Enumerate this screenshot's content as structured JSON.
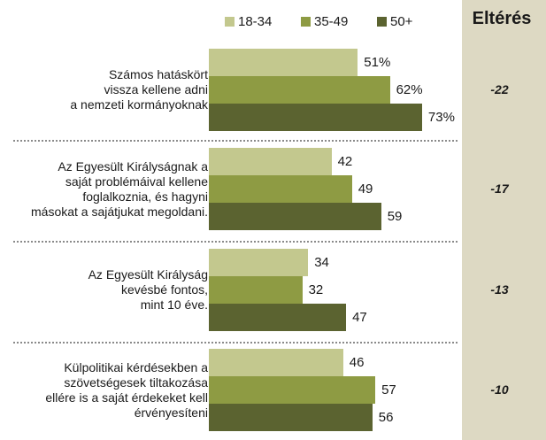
{
  "chart_data": {
    "type": "bar",
    "orientation": "horizontal",
    "diff_header": "Eltérés",
    "series": [
      {
        "name": "18-34",
        "color": "#c3c88e"
      },
      {
        "name": "35-49",
        "color": "#8e9b43"
      },
      {
        "name": "50+",
        "color": "#5b6330"
      }
    ],
    "categories": [
      {
        "lines": [
          "Számos hatáskört",
          "vissza kellene adni",
          "a nemzeti kormányoknak"
        ],
        "values": [
          51,
          62,
          73
        ],
        "value_labels": [
          "51%",
          "62%",
          "73%"
        ],
        "diff": "-22"
      },
      {
        "lines": [
          "Az Egyesült Királyságnak a",
          "saját problémáival kellene",
          "foglalkoznia, és hagyni",
          "másokat a sajátjukat megoldani."
        ],
        "values": [
          42,
          49,
          59
        ],
        "value_labels": [
          "42",
          "49",
          "59"
        ],
        "diff": "-17"
      },
      {
        "lines": [
          "Az Egyesült Királyság",
          "kevésbé fontos,",
          "mint 10 éve."
        ],
        "values": [
          34,
          32,
          47
        ],
        "value_labels": [
          "34",
          "32",
          "47"
        ],
        "diff": "-13"
      },
      {
        "lines": [
          "Külpolitikai kérdésekben a",
          "szövetségesek tiltakozása",
          "ellére is a saját érdekeket kell",
          "érvényesíteni"
        ],
        "values": [
          46,
          57,
          56
        ],
        "value_labels": [
          "46",
          "57",
          "56"
        ],
        "diff": "-10"
      }
    ]
  }
}
